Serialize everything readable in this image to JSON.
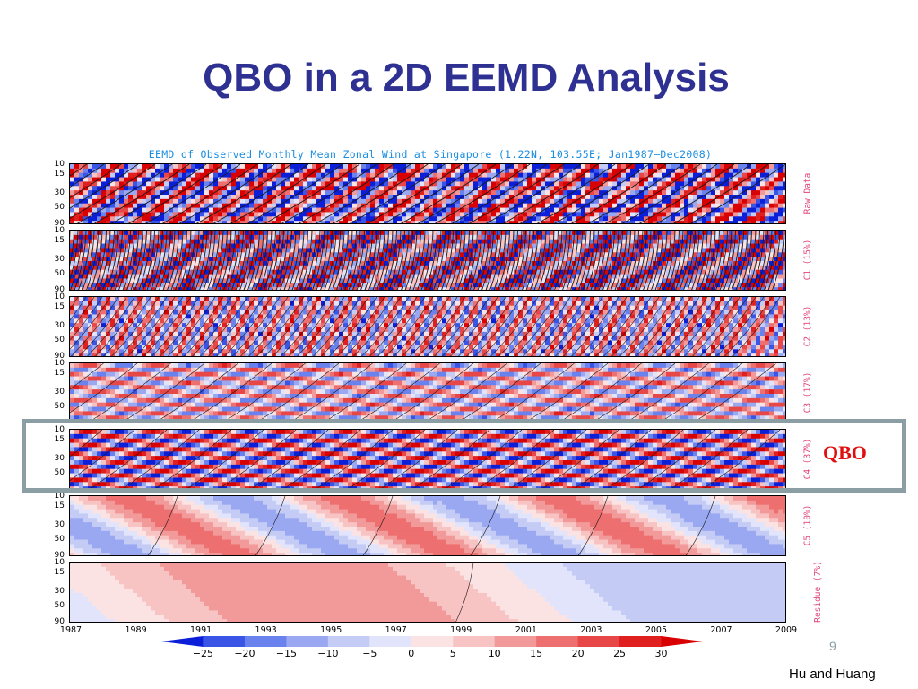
{
  "slide": {
    "title": "QBO in a 2D EEMD Analysis",
    "figure_title": "EEMD of Observed Monthly Mean Zonal Wind at Singapore (1.22N, 103.55E; Jan1987–Dec2008)",
    "page_number": "9",
    "credit": "Hu and Huang",
    "highlight_label": "QBO"
  },
  "panels": [
    {
      "label": "Raw Data",
      "y_ticks": [
        "10",
        "15",
        "30",
        "50",
        "90"
      ]
    },
    {
      "label": "C1 (15%)",
      "y_ticks": [
        "10",
        "15",
        "30",
        "50",
        "90"
      ]
    },
    {
      "label": "C2 (13%)",
      "y_ticks": [
        "10",
        "15",
        "30",
        "50",
        "90"
      ]
    },
    {
      "label": "C3 (17%)",
      "y_ticks": [
        "10",
        "15",
        "30",
        "50"
      ]
    },
    {
      "label": "C4 (37%)",
      "y_ticks": [
        "10",
        "15",
        "30",
        "50"
      ]
    },
    {
      "label": "C5 (10%)",
      "y_ticks": [
        "10",
        "15",
        "30",
        "50",
        "90"
      ]
    },
    {
      "label": "Residue (7%)",
      "y_ticks": [
        "10",
        "15",
        "30",
        "50",
        "90"
      ]
    }
  ],
  "x_ticks": [
    "1987",
    "1989",
    "1991",
    "1993",
    "1995",
    "1997",
    "1999",
    "2001",
    "2003",
    "2005",
    "2007",
    "2009"
  ],
  "colorbar": {
    "ticks": [
      "−25",
      "−20",
      "−15",
      "−10",
      "−5",
      "0",
      "5",
      "10",
      "15",
      "20",
      "25",
      "30"
    ],
    "colors": [
      "#0b1fd9",
      "#3a55e6",
      "#6a82ee",
      "#9aa8f2",
      "#c4cbf5",
      "#e1e4fa",
      "#fbe3e3",
      "#f8c3c3",
      "#f29a9a",
      "#ee6f6f",
      "#e84747",
      "#e01f1f",
      "#d80000"
    ]
  },
  "colors": {
    "title": "#2E3192",
    "figure_title": "#1a8de0",
    "side_label": "#e0457b",
    "highlight_border": "#8a9ea3",
    "qbo": "#e01010",
    "positive": "#f4b4b4",
    "negative": "#b7c0f0"
  }
}
